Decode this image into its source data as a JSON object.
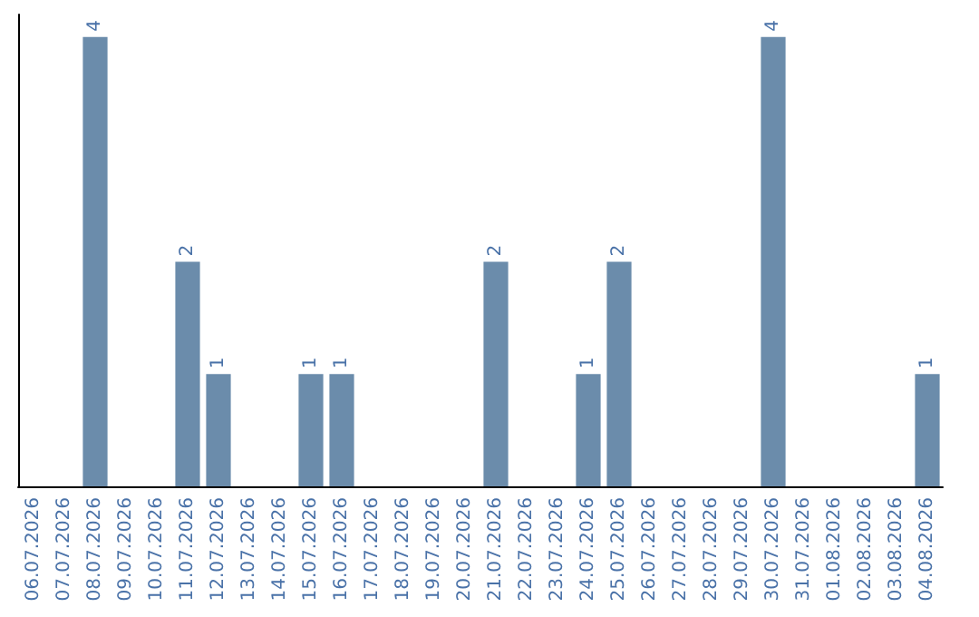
{
  "chart_data": {
    "type": "bar",
    "categories": [
      "06.07.2026",
      "07.07.2026",
      "08.07.2026",
      "09.07.2026",
      "10.07.2026",
      "11.07.2026",
      "12.07.2026",
      "13.07.2026",
      "14.07.2026",
      "15.07.2026",
      "16.07.2026",
      "17.07.2026",
      "18.07.2026",
      "19.07.2026",
      "20.07.2026",
      "21.07.2026",
      "22.07.2026",
      "23.07.2026",
      "24.07.2026",
      "25.07.2026",
      "26.07.2026",
      "27.07.2026",
      "28.07.2026",
      "29.07.2026",
      "30.07.2026",
      "31.07.2026",
      "01.08.2026",
      "02.08.2026",
      "03.08.2026",
      "04.08.2026"
    ],
    "values": [
      0,
      0,
      4,
      0,
      0,
      2,
      1,
      0,
      0,
      1,
      1,
      0,
      0,
      0,
      0,
      2,
      0,
      0,
      1,
      2,
      0,
      0,
      0,
      0,
      4,
      0,
      0,
      0,
      0,
      1
    ],
    "value_labels": [
      null,
      null,
      "4",
      null,
      null,
      "2",
      "1",
      null,
      null,
      "1",
      "1",
      null,
      null,
      null,
      null,
      "2",
      null,
      null,
      "1",
      "2",
      null,
      null,
      null,
      null,
      "4",
      null,
      null,
      null,
      null,
      "1"
    ],
    "color": "#6b8cab",
    "tick_labels": "x"
  }
}
